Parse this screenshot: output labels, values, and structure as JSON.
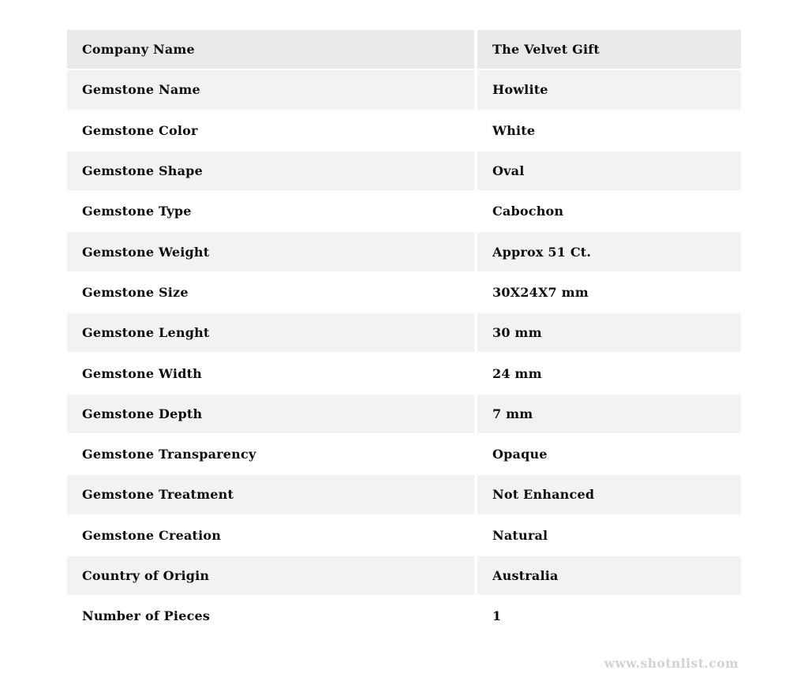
{
  "table": {
    "rows": [
      {
        "label": "Company Name",
        "value": "The Velvet Gift"
      },
      {
        "label": "Gemstone Name",
        "value": "Howlite"
      },
      {
        "label": "Gemstone Color",
        "value": "White"
      },
      {
        "label": "Gemstone Shape",
        "value": "Oval"
      },
      {
        "label": "Gemstone Type",
        "value": "Cabochon"
      },
      {
        "label": "Gemstone Weight",
        "value": "Approx 51 Ct."
      },
      {
        "label": "Gemstone Size",
        "value": "30X24X7 mm"
      },
      {
        "label": "Gemstone Lenght",
        "value": "30 mm"
      },
      {
        "label": "Gemstone Width",
        "value": "24 mm"
      },
      {
        "label": "Gemstone Depth",
        "value": "7 mm"
      },
      {
        "label": "Gemstone Transparency",
        "value": "Opaque"
      },
      {
        "label": "Gemstone Treatment",
        "value": "Not Enhanced"
      },
      {
        "label": "Gemstone Creation",
        "value": "Natural"
      },
      {
        "label": "Country of Origin",
        "value": "Australia"
      },
      {
        "label": "Number of Pieces",
        "value": "1"
      }
    ]
  },
  "watermark": {
    "text": "www.shotnlist.com"
  },
  "colors": {
    "page_bg": "#ffffff",
    "header_row_bg": "#e8eaea",
    "alt_row_bg": "#f1f2f2",
    "plain_row_bg": "#ffffff",
    "text_color": "#0d0d0d",
    "watermark_color": "#d2d2d2"
  }
}
